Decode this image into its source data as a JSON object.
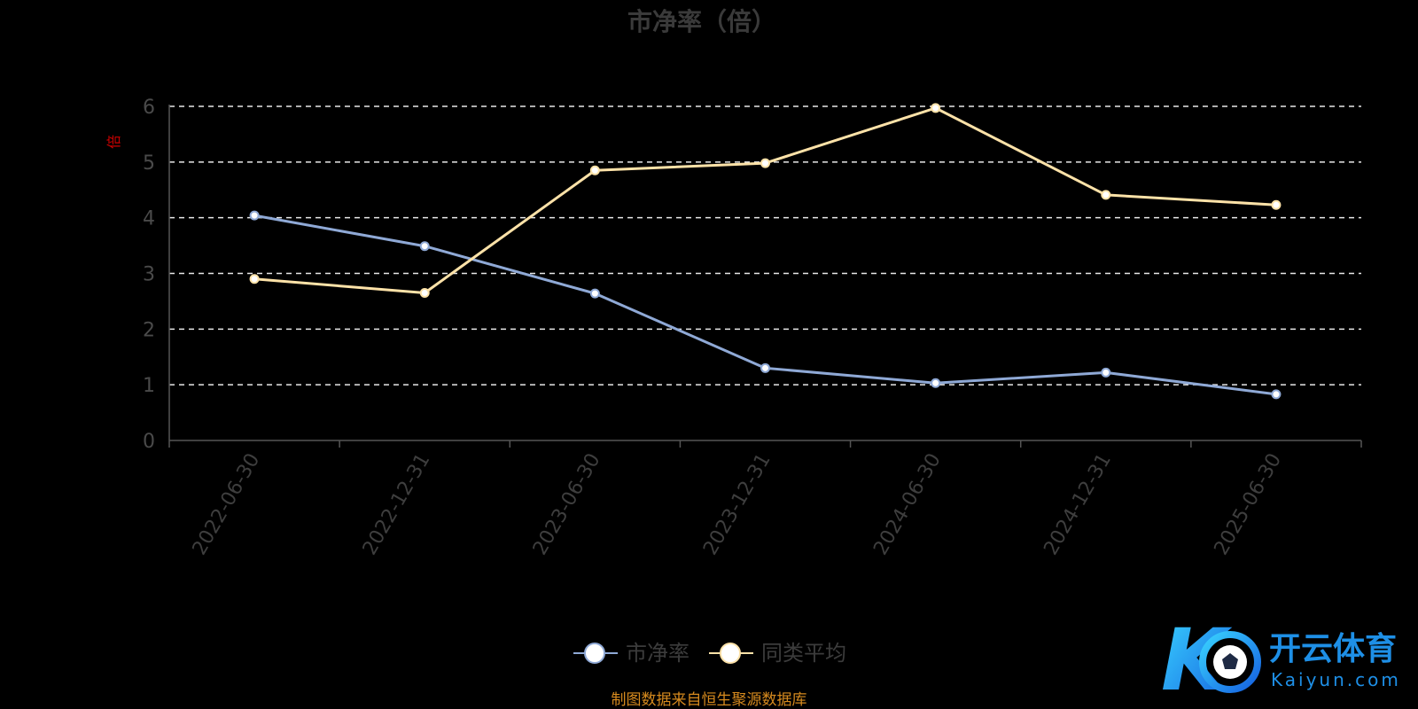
{
  "chart_data": {
    "type": "line",
    "title": "市净率（倍）",
    "ylabel": "倍",
    "categories": [
      "2022-06-30",
      "2022-12-31",
      "2023-06-30",
      "2023-12-31",
      "2024-06-30",
      "2024-12-31",
      "2025-06-30"
    ],
    "ylim": [
      0,
      6
    ],
    "yticks": [
      "0",
      "1",
      "2",
      "3",
      "4",
      "5",
      "6"
    ],
    "grid": true,
    "legend_position": "bottom",
    "series": [
      {
        "name": "市净率",
        "color": "#8fa9d6",
        "values": [
          4.04,
          3.49,
          2.64,
          1.3,
          1.03,
          1.22,
          0.83
        ]
      },
      {
        "name": "同类平均",
        "color": "#fde2a8",
        "values": [
          2.9,
          2.65,
          4.85,
          4.98,
          5.97,
          4.41,
          4.23
        ]
      }
    ],
    "source_note": "制图数据来自恒生聚源数据库"
  },
  "watermark": {
    "brand_cn": "开云体育",
    "brand_en": "Kaiyun.com",
    "brand_color": "#1e8fe6"
  }
}
